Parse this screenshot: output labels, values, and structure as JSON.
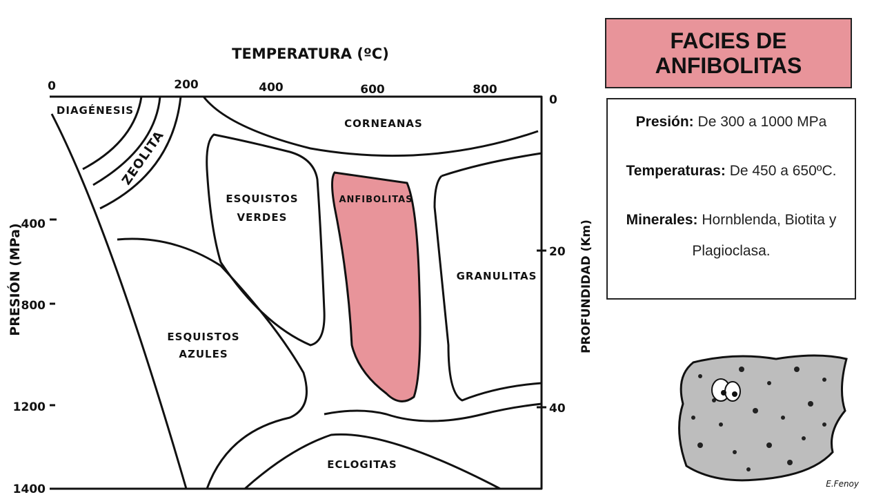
{
  "diagram": {
    "x_axis_title": "TEMPERATURA (ºC)",
    "x_ticks": [
      "0",
      "200",
      "400",
      "600",
      "800"
    ],
    "y_left_title": "PRESIÓN (MPa)",
    "y_left_ticks": [
      "400",
      "800",
      "1200",
      "1400"
    ],
    "y_right_title": "PROFUNDIDAD (Km)",
    "y_right_ticks": [
      "0",
      "20",
      "40"
    ],
    "regions": {
      "diagenesis": "DIAGÉNESIS",
      "zeolita": "ZEOLITA",
      "corneanas": "CORNEANAS",
      "esquistos_verdes": [
        "ESQUISTOS",
        "VERDES"
      ],
      "anfibolitas": "ANFIBOLITAS",
      "granulitas": "GRANULITAS",
      "esquistos_azules": [
        "ESQUISTOS",
        "AZULES"
      ],
      "eclogitas": "ECLOGITAS"
    }
  },
  "card": {
    "title": [
      "FACIES DE",
      "ANFIBOLITAS"
    ],
    "items": [
      {
        "label": "Presión:",
        "text": "De 300 a 1000 MPa"
      },
      {
        "label": "Temperaturas:",
        "text": "De 450 a 650ºC."
      },
      {
        "label": "Minerales:",
        "text": "Hornblenda, Biotita y Plagioclasa."
      }
    ]
  },
  "signature": "E.Fenoy"
}
